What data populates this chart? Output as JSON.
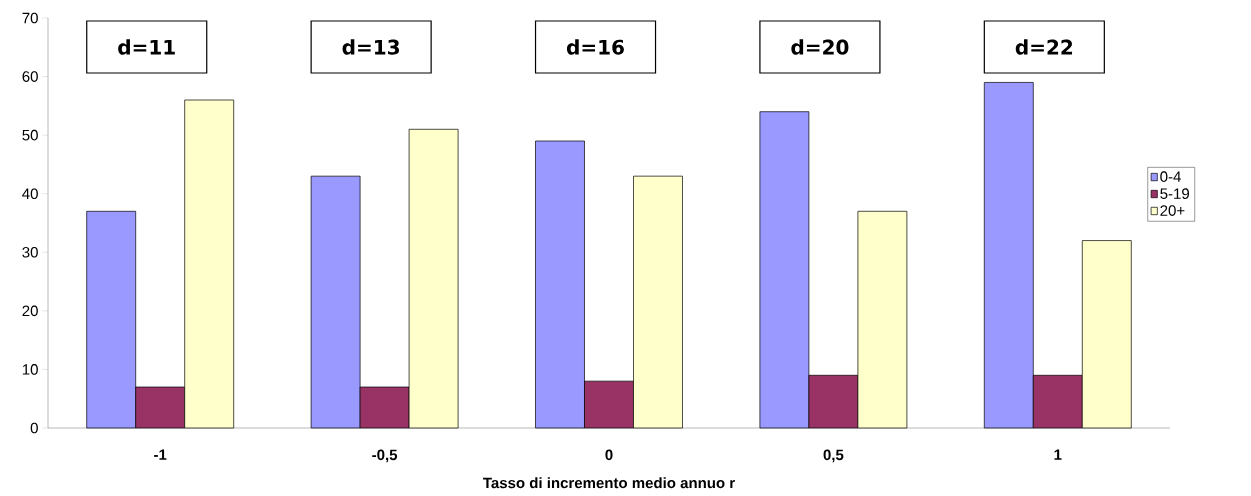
{
  "chart_data": {
    "type": "bar",
    "xlabel": "Tasso di incremento medio annuo r",
    "categories": [
      "-1",
      "-0,5",
      "0",
      "0,5",
      "1"
    ],
    "series": [
      {
        "name": "0-4",
        "color": "#9999ff",
        "values": [
          37,
          43,
          49,
          54,
          59
        ]
      },
      {
        "name": "5-19",
        "color": "#993366",
        "values": [
          7,
          7,
          8,
          9,
          9
        ]
      },
      {
        "name": "20+",
        "color": "#ffffcc",
        "values": [
          56,
          51,
          43,
          37,
          32
        ]
      }
    ],
    "ylim": [
      0,
      70
    ],
    "yticks": [
      0,
      10,
      20,
      30,
      40,
      50,
      60,
      70
    ],
    "grid": false,
    "legend": "right",
    "annotations": [
      "d=11",
      "d=13",
      "d=16",
      "d=20",
      "d=22"
    ]
  }
}
